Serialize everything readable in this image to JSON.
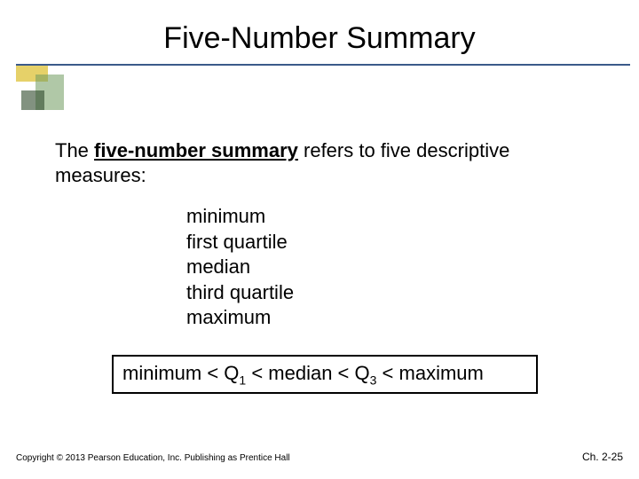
{
  "title": "Five-Number Summary",
  "intro_pre": "The ",
  "intro_term": "five-number summary",
  "intro_post": " refers to five descriptive measures:",
  "list_items": [
    "minimum",
    "first quartile",
    "median",
    "third quartile",
    "maximum"
  ],
  "inequality_parts": {
    "p1": "minimum < Q",
    "s1": "1",
    "p2": " < median < Q",
    "s2": "3",
    "p3": " < maximum"
  },
  "footer_left": "Copyright © 2013 Pearson Education, Inc. Publishing as Prentice Hall",
  "footer_right": "Ch. 2-25",
  "colors": {
    "rule": "#3b5a8a",
    "text": "#000000",
    "decor_yellow": "#e2c94f",
    "decor_green": "#6f9a5e",
    "decor_dark": "#2e4a2c",
    "background": "#ffffff"
  },
  "typography": {
    "title_fontsize": 34,
    "body_fontsize": 22,
    "footer_left_fontsize": 10,
    "footer_right_fontsize": 12,
    "subscript_fontsize": 14
  }
}
